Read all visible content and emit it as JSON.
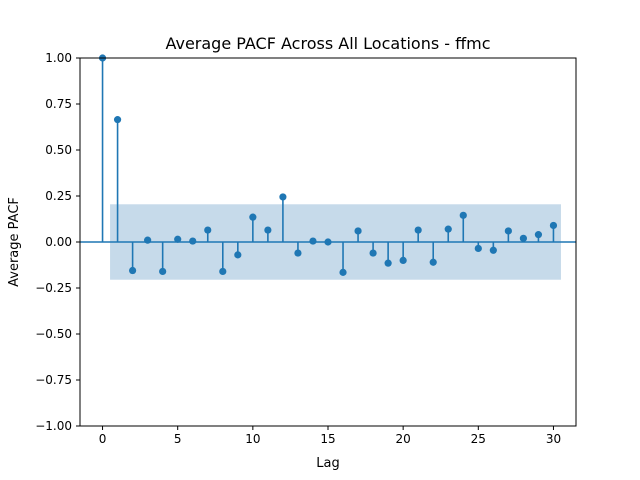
{
  "chart_data": {
    "type": "stem",
    "title": "Average PACF Across All Locations - ffmc",
    "xlabel": "Lag",
    "ylabel": "Average PACF",
    "xlim": [
      -1.5,
      31.5
    ],
    "ylim": [
      -1.0,
      1.0
    ],
    "x_ticks": [
      0,
      5,
      10,
      15,
      20,
      25,
      30
    ],
    "y_ticks": [
      -1.0,
      -0.75,
      -0.5,
      -0.25,
      0.0,
      0.25,
      0.5,
      0.75,
      1.0
    ],
    "x_tick_labels": [
      "0",
      "5",
      "10",
      "15",
      "20",
      "25",
      "30"
    ],
    "y_tick_labels": [
      "−1.00",
      "−0.75",
      "−0.50",
      "−0.25",
      "0.00",
      "0.25",
      "0.50",
      "0.75",
      "1.00"
    ],
    "confidence_band": {
      "x_range": [
        0.5,
        30.5
      ],
      "lower": -0.205,
      "upper": 0.205,
      "color": "#c6daea"
    },
    "baseline": 0.0,
    "lags": [
      0,
      1,
      2,
      3,
      4,
      5,
      6,
      7,
      8,
      9,
      10,
      11,
      12,
      13,
      14,
      15,
      16,
      17,
      18,
      19,
      20,
      21,
      22,
      23,
      24,
      25,
      26,
      27,
      28,
      29,
      30
    ],
    "values": [
      1.0,
      0.665,
      -0.155,
      0.01,
      -0.16,
      0.015,
      0.005,
      0.065,
      -0.16,
      -0.07,
      0.135,
      0.065,
      0.245,
      -0.06,
      0.005,
      0.0,
      -0.165,
      0.06,
      -0.06,
      -0.115,
      -0.1,
      0.065,
      -0.11,
      0.07,
      0.145,
      -0.035,
      -0.045,
      0.06,
      0.02,
      0.04,
      0.09
    ],
    "color": "#1f77b4",
    "grid": false
  }
}
